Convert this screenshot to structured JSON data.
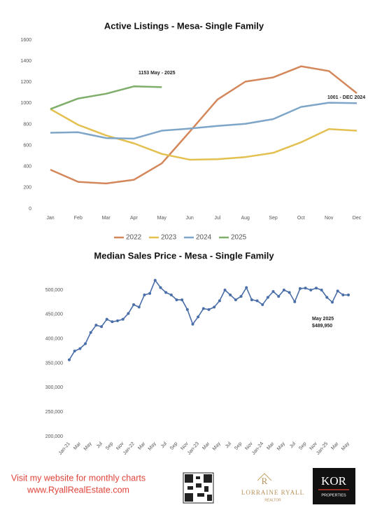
{
  "chart_data": [
    {
      "type": "line",
      "title": "Active Listings - Mesa-  Single Family",
      "categories": [
        "Jan",
        "Feb",
        "Mar",
        "Apr",
        "May",
        "Jun",
        "Jul",
        "Aug",
        "Sep",
        "Oct",
        "Nov",
        "Dec"
      ],
      "series": [
        {
          "name": "2022",
          "color": "#d4875a",
          "values": [
            370,
            255,
            240,
            275,
            430,
            730,
            1035,
            1205,
            1245,
            1350,
            1305,
            1095
          ]
        },
        {
          "name": "2023",
          "color": "#e3c04f",
          "values": [
            945,
            795,
            695,
            620,
            520,
            465,
            470,
            490,
            530,
            630,
            755,
            740
          ]
        },
        {
          "name": "2024",
          "color": "#7ea6c8",
          "values": [
            720,
            725,
            670,
            665,
            740,
            760,
            785,
            805,
            850,
            965,
            1005,
            1001
          ]
        },
        {
          "name": "2025",
          "color": "#7fae6a",
          "values": [
            945,
            1045,
            1090,
            1160,
            1153,
            null,
            null,
            null,
            null,
            null,
            null,
            null
          ]
        }
      ],
      "ylim": [
        0,
        1600
      ],
      "yticks": [
        0,
        200,
        400,
        600,
        800,
        1000,
        1200,
        1400,
        1600
      ],
      "legend": "bottom",
      "annotations": [
        "1153 May - 2025",
        "1001 - DEC 2024"
      ]
    },
    {
      "type": "line",
      "title": "Median Sales Price -  Mesa - Single Family",
      "categories": [
        "Jan-21",
        null,
        "Mar",
        null,
        "May",
        null,
        "Jul",
        null,
        "Sep",
        null,
        "Nov",
        null,
        "Jan-22",
        null,
        "Mar",
        null,
        "May",
        null,
        "Jul",
        null,
        "Sep",
        null,
        "Nov",
        null,
        "Jan-23",
        null,
        "Mar",
        null,
        "May",
        null,
        "Jul",
        null,
        "Sep",
        null,
        "Nov",
        null,
        "Jan-24",
        null,
        "Mar",
        null,
        "May",
        null,
        "Jul",
        null,
        "Sep",
        null,
        "Nov",
        null,
        "Jan-25",
        null,
        "Mar",
        null,
        "May"
      ],
      "color": "#4a6ea8",
      "values": [
        357000,
        375000,
        380000,
        390000,
        413000,
        428000,
        425000,
        440000,
        435000,
        437000,
        440000,
        452000,
        470000,
        465000,
        490000,
        493000,
        520000,
        505000,
        495000,
        490000,
        480000,
        480000,
        460000,
        430000,
        445000,
        462000,
        460000,
        465000,
        478000,
        500000,
        490000,
        480000,
        487000,
        505000,
        480000,
        478000,
        470000,
        485000,
        497000,
        487000,
        500000,
        495000,
        476000,
        503000,
        504000,
        500000,
        504000,
        500000,
        485000,
        475000,
        498000,
        490000,
        489950
      ],
      "ylim": [
        200000,
        525000
      ],
      "yticks": [
        {
          "value": 200000,
          "label": "200,000"
        },
        {
          "value": 250000,
          "label": "250,000"
        },
        {
          "value": 300000,
          "label": "300,000"
        },
        {
          "value": 350000,
          "label": "350,000"
        },
        {
          "value": 400000,
          "label": "400,000"
        },
        {
          "value": 450000,
          "label": "450,000"
        },
        {
          "value": 500000,
          "label": "500,000"
        }
      ],
      "annotations": [
        "May 2025",
        "$489,950"
      ]
    }
  ],
  "footer": {
    "line1": "Visit my website for monthly charts",
    "line2": "www.RyallRealEstate.com",
    "logo_initial": "R",
    "logo_name": "LORRAINE RYALL",
    "logo_title": "REALTOR",
    "brand": "KOR",
    "brand_sub": "PROPERTIES"
  }
}
